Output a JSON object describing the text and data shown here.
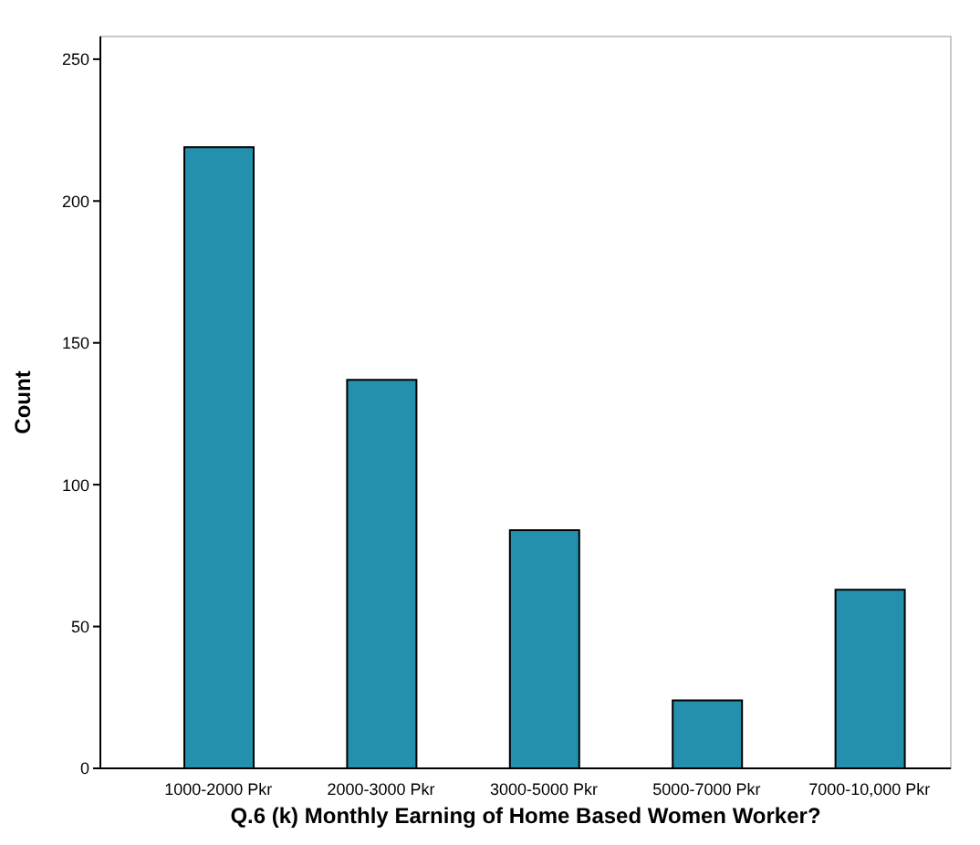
{
  "chart_data": {
    "type": "bar",
    "xlabel": "Q.6 (k) Monthly Earning of Home Based Women Worker?",
    "ylabel": "Count",
    "categories": [
      "1000-2000 Pkr",
      "2000-3000 Pkr",
      "3000-5000 Pkr",
      "5000-7000 Pkr",
      "7000-10,000 Pkr"
    ],
    "values": [
      219,
      137,
      84,
      24,
      63
    ],
    "color": "#2490ad",
    "ylim": [
      0,
      258
    ],
    "yticks": [
      0,
      50,
      100,
      150,
      200,
      250
    ],
    "grid": false
  }
}
